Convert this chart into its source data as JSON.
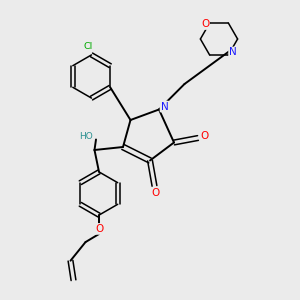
{
  "background_color": "#ebebeb",
  "atom_colors": {
    "C": "#000000",
    "N": "#1a1aff",
    "O": "#ff0000",
    "Cl": "#00aa00",
    "HO": "#2a9090"
  },
  "bond_color": "#000000",
  "figsize": [
    3.0,
    3.0
  ],
  "dpi": 100
}
